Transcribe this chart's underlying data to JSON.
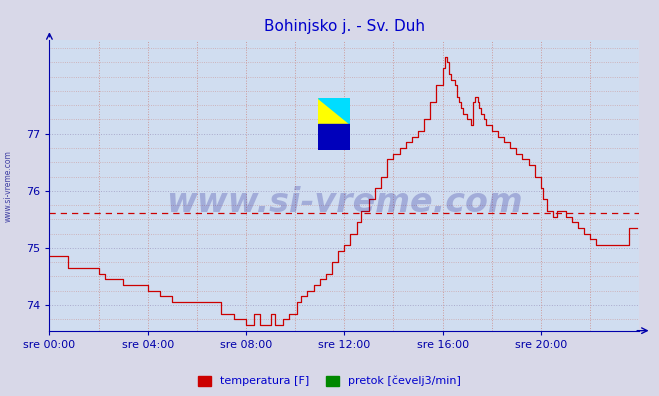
{
  "title": "Bohinjsko j. - Sv. Duh",
  "title_color": "#0000cc",
  "title_fontsize": 11,
  "bg_color": "#d8d8e8",
  "plot_bg_color": "#d0ddf0",
  "grid_color_h": "#aaaacc",
  "grid_color_v": "#cc9999",
  "line_color": "#cc0000",
  "avg_line_color": "#cc0000",
  "avg_line_value": 75.62,
  "tick_color": "#0000aa",
  "axis_color": "#0000aa",
  "watermark_color": "#000088",
  "watermark_text": "www.si-vreme.com",
  "watermark_fontsize": 24,
  "side_text": "www.si-vreme.com",
  "yticks": [
    74,
    75,
    76,
    77
  ],
  "ylim": [
    73.55,
    78.65
  ],
  "xlim_hours": [
    0,
    24
  ],
  "xtick_labels": [
    "sre 00:00",
    "sre 04:00",
    "sre 08:00",
    "sre 12:00",
    "sre 16:00",
    "sre 20:00"
  ],
  "xtick_positions": [
    0,
    4,
    8,
    12,
    16,
    20
  ],
  "legend_labels": [
    "temperatura [F]",
    "pretok [čevelj3/min]"
  ],
  "legend_colors": [
    "#cc0000",
    "#008800"
  ],
  "temperature_data": [
    [
      0.0,
      74.85
    ],
    [
      0.25,
      74.85
    ],
    [
      0.5,
      74.85
    ],
    [
      0.75,
      74.65
    ],
    [
      1.0,
      74.65
    ],
    [
      1.5,
      74.65
    ],
    [
      1.75,
      74.65
    ],
    [
      2.0,
      74.55
    ],
    [
      2.25,
      74.45
    ],
    [
      2.5,
      74.45
    ],
    [
      2.75,
      74.45
    ],
    [
      3.0,
      74.35
    ],
    [
      3.5,
      74.35
    ],
    [
      3.75,
      74.35
    ],
    [
      4.0,
      74.25
    ],
    [
      4.25,
      74.25
    ],
    [
      4.5,
      74.15
    ],
    [
      4.75,
      74.15
    ],
    [
      5.0,
      74.05
    ],
    [
      5.25,
      74.05
    ],
    [
      5.5,
      74.05
    ],
    [
      5.75,
      74.05
    ],
    [
      6.0,
      74.05
    ],
    [
      6.5,
      74.05
    ],
    [
      6.75,
      74.05
    ],
    [
      7.0,
      73.85
    ],
    [
      7.25,
      73.85
    ],
    [
      7.5,
      73.75
    ],
    [
      7.75,
      73.75
    ],
    [
      8.0,
      73.65
    ],
    [
      8.25,
      73.65
    ],
    [
      8.33,
      73.85
    ],
    [
      8.5,
      73.85
    ],
    [
      8.58,
      73.65
    ],
    [
      8.75,
      73.65
    ],
    [
      9.0,
      73.85
    ],
    [
      9.08,
      73.85
    ],
    [
      9.17,
      73.65
    ],
    [
      9.33,
      73.65
    ],
    [
      9.5,
      73.75
    ],
    [
      9.67,
      73.75
    ],
    [
      9.75,
      73.85
    ],
    [
      10.0,
      73.85
    ],
    [
      10.08,
      74.05
    ],
    [
      10.25,
      74.15
    ],
    [
      10.5,
      74.25
    ],
    [
      10.75,
      74.35
    ],
    [
      11.0,
      74.45
    ],
    [
      11.25,
      74.55
    ],
    [
      11.5,
      74.75
    ],
    [
      11.75,
      74.95
    ],
    [
      12.0,
      75.05
    ],
    [
      12.25,
      75.25
    ],
    [
      12.5,
      75.45
    ],
    [
      12.67,
      75.65
    ],
    [
      13.0,
      75.85
    ],
    [
      13.25,
      76.05
    ],
    [
      13.5,
      76.25
    ],
    [
      13.75,
      76.55
    ],
    [
      14.0,
      76.65
    ],
    [
      14.25,
      76.75
    ],
    [
      14.5,
      76.85
    ],
    [
      14.75,
      76.95
    ],
    [
      15.0,
      77.05
    ],
    [
      15.25,
      77.25
    ],
    [
      15.5,
      77.55
    ],
    [
      15.75,
      77.85
    ],
    [
      16.0,
      78.15
    ],
    [
      16.08,
      78.35
    ],
    [
      16.17,
      78.25
    ],
    [
      16.25,
      78.05
    ],
    [
      16.33,
      77.95
    ],
    [
      16.5,
      77.85
    ],
    [
      16.58,
      77.65
    ],
    [
      16.67,
      77.55
    ],
    [
      16.75,
      77.45
    ],
    [
      16.83,
      77.35
    ],
    [
      17.0,
      77.25
    ],
    [
      17.17,
      77.15
    ],
    [
      17.25,
      77.55
    ],
    [
      17.33,
      77.65
    ],
    [
      17.42,
      77.55
    ],
    [
      17.5,
      77.45
    ],
    [
      17.58,
      77.35
    ],
    [
      17.67,
      77.25
    ],
    [
      17.75,
      77.15
    ],
    [
      18.0,
      77.05
    ],
    [
      18.25,
      76.95
    ],
    [
      18.5,
      76.85
    ],
    [
      18.75,
      76.75
    ],
    [
      19.0,
      76.65
    ],
    [
      19.25,
      76.55
    ],
    [
      19.5,
      76.45
    ],
    [
      19.75,
      76.25
    ],
    [
      20.0,
      76.05
    ],
    [
      20.08,
      75.85
    ],
    [
      20.25,
      75.65
    ],
    [
      20.5,
      75.55
    ],
    [
      20.67,
      75.65
    ],
    [
      20.75,
      75.65
    ],
    [
      21.0,
      75.55
    ],
    [
      21.25,
      75.45
    ],
    [
      21.5,
      75.35
    ],
    [
      21.75,
      75.25
    ],
    [
      22.0,
      75.15
    ],
    [
      22.25,
      75.05
    ],
    [
      22.5,
      75.05
    ],
    [
      22.75,
      75.05
    ],
    [
      23.0,
      75.05
    ],
    [
      23.25,
      75.05
    ],
    [
      23.5,
      75.05
    ],
    [
      23.58,
      75.35
    ],
    [
      23.75,
      75.35
    ],
    [
      23.92,
      75.35
    ]
  ]
}
